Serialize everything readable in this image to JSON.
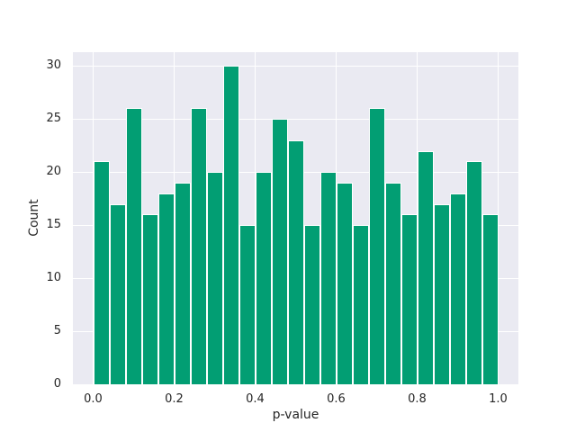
{
  "chart_data": {
    "type": "bar",
    "chart_kind": "histogram",
    "title": "",
    "xlabel": "p-value",
    "ylabel": "Count",
    "bin_start": 0.0,
    "bin_width": 0.04,
    "values": [
      21,
      17,
      26,
      16,
      18,
      19,
      26,
      20,
      30,
      15,
      20,
      25,
      23,
      15,
      20,
      19,
      15,
      26,
      19,
      16,
      22,
      17,
      18,
      21,
      16
    ],
    "x_tick_values": [
      0.0,
      0.2,
      0.4,
      0.6,
      0.8,
      1.0
    ],
    "x_tick_labels": [
      "0.0",
      "0.2",
      "0.4",
      "0.6",
      "0.8",
      "1.0"
    ],
    "y_tick_values": [
      0,
      5,
      10,
      15,
      20,
      25,
      30
    ],
    "y_tick_labels": [
      "0",
      "5",
      "10",
      "15",
      "20",
      "25",
      "30"
    ],
    "xlim": [
      -0.05,
      1.05
    ],
    "ylim": [
      0,
      31.3
    ],
    "grid": true,
    "legend": false,
    "colors": {
      "bar_fill": "#029e73",
      "bar_edge": "#ffffff",
      "plot_background": "#eaeaf2",
      "figure_background": "#ffffff",
      "grid_line": "#ffffff",
      "text": "#262626"
    }
  }
}
